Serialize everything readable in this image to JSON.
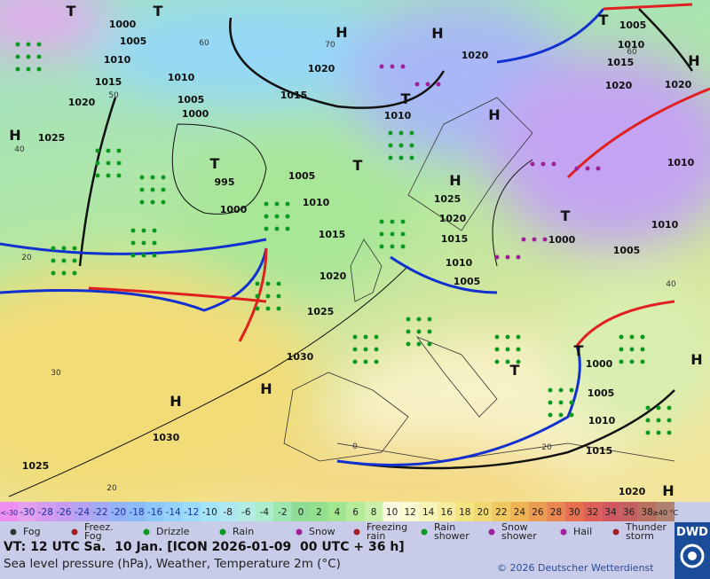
{
  "map": {
    "isobar_labels": [
      "1000",
      "1005",
      "1010",
      "1015",
      "1020",
      "1025",
      "1010",
      "1005",
      "1000",
      "995",
      "1000",
      "1005",
      "1010",
      "1015",
      "1020",
      "1025",
      "1030",
      "1030",
      "1025",
      "1020",
      "1015",
      "1010",
      "1020",
      "1005",
      "1010",
      "1015",
      "1020",
      "1020",
      "1010",
      "1010",
      "1005",
      "1000",
      "1025",
      "1020",
      "1015",
      "1010",
      "1005",
      "1000",
      "1005",
      "1010",
      "1015",
      "1020"
    ],
    "pressure_centers": [
      "T",
      "T",
      "H",
      "H",
      "H",
      "T",
      "H",
      "T",
      "T",
      "T",
      "H",
      "H",
      "T",
      "H",
      "H",
      "T",
      "T",
      "H",
      "H"
    ],
    "isotherm_labels": [
      "40",
      "30",
      "20",
      "20",
      "60",
      "70",
      "50",
      "0",
      "40",
      "20",
      "60"
    ]
  },
  "scale": {
    "labels": [
      "<-30",
      "-30",
      "-28",
      "-26",
      "-24",
      "-22",
      "-20",
      "-18",
      "-16",
      "-14",
      "-12",
      "-10",
      "-8",
      "-6",
      "-4",
      "-2",
      "0",
      "2",
      "4",
      "6",
      "8",
      "10",
      "12",
      "14",
      "16",
      "18",
      "20",
      "22",
      "24",
      "26",
      "28",
      "30",
      "32",
      "34",
      "36",
      "38",
      "≥40 °C"
    ],
    "colors": [
      "#ee8ef0",
      "#e3a0ee",
      "#d49cee",
      "#c59cf0",
      "#b4a2f2",
      "#a4aaf4",
      "#94b2f6",
      "#8cbcf8",
      "#8ec8fa",
      "#94d2fa",
      "#9adcfa",
      "#a4e4f8",
      "#ade8f0",
      "#b2ece2",
      "#aaeccc",
      "#9ee6b0",
      "#8edc96",
      "#92e08e",
      "#a2e690",
      "#b4ec98",
      "#c8f0a8",
      "#fafae0",
      "#fafad0",
      "#f8f4b8",
      "#f6ec9c",
      "#f4e480",
      "#f2d870",
      "#f0c860",
      "#eeb454",
      "#ec9c50",
      "#ea8650",
      "#e47050",
      "#dc6058",
      "#d05860",
      "#c46060",
      "#b87060",
      "#b08070"
    ]
  },
  "legend": [
    "Fog",
    "Freez. Fog",
    "Drizzle",
    "Rain",
    "Snow",
    "Freezing rain",
    "Rain shower",
    "Snow shower",
    "Hail",
    "Thunder storm"
  ],
  "footer": {
    "valid_time": "VT: 12 UTC Sa.  10 Jan. [ICON 2026-01-09  00 UTC + 36 h]",
    "description": "Sea level pressure (hPa), Weather, Temperature 2m (°C)",
    "copyright": "© 2026 Deutscher Wetterdienst",
    "logo": "DWD"
  }
}
